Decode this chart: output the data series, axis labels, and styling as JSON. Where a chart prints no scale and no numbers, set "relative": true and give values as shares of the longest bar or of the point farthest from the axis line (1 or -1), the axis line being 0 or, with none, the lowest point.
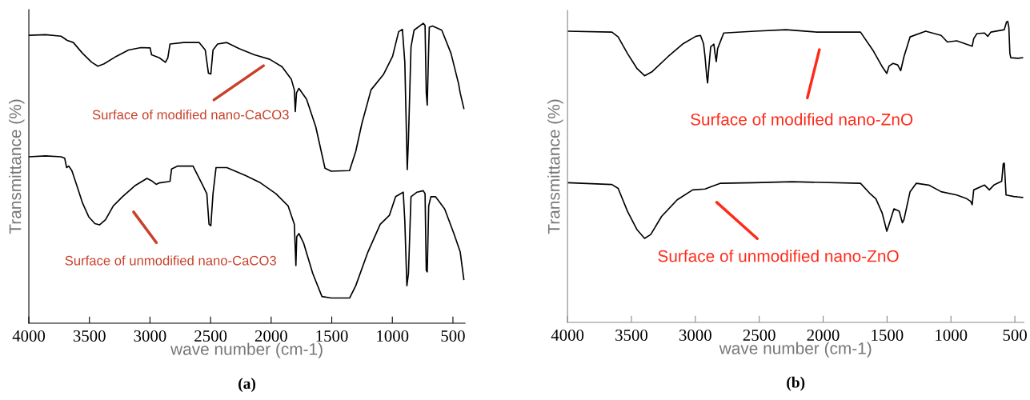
{
  "chart_data": [
    {
      "type": "line",
      "title": "(a)",
      "xlabel": "wave number (cm-1)",
      "ylabel": "Transmittance (%)",
      "relative": true,
      "xlim": [
        4000,
        400
      ],
      "xticks": [
        4000,
        3500,
        3000,
        2500,
        2000,
        1500,
        1000,
        500
      ],
      "series": [
        {
          "color": "#000000",
          "x": [
            4000,
            3861,
            3734,
            3683,
            3633,
            3557,
            3481,
            3430,
            3379,
            3278,
            3177,
            3075,
            2999,
            2987,
            2923,
            2873,
            2853,
            2835,
            2721,
            2594,
            2544,
            2518,
            2498,
            2480,
            2442,
            2366,
            2265,
            2138,
            2012,
            1910,
            1834,
            1809,
            1801,
            1791,
            1771,
            1708,
            1632,
            1556,
            1505,
            1353,
            1302,
            1252,
            1176,
            1074,
            998,
            948,
            917,
            897,
            877,
            867,
            846,
            821,
            745,
            730,
            720,
            712,
            700,
            695,
            668,
            592,
            516,
            453,
            440,
            410
          ],
          "values": [
            0.96,
            0.962,
            0.957,
            0.943,
            0.936,
            0.9,
            0.87,
            0.857,
            0.865,
            0.89,
            0.911,
            0.919,
            0.918,
            0.895,
            0.885,
            0.87,
            0.885,
            0.931,
            0.936,
            0.936,
            0.911,
            0.834,
            0.831,
            0.911,
            0.931,
            0.936,
            0.916,
            0.895,
            0.88,
            0.855,
            0.814,
            0.778,
            0.706,
            0.768,
            0.783,
            0.747,
            0.655,
            0.517,
            0.507,
            0.509,
            0.573,
            0.665,
            0.778,
            0.829,
            0.89,
            0.972,
            0.98,
            0.87,
            0.512,
            0.614,
            0.921,
            0.977,
            1.0,
            0.993,
            0.768,
            0.727,
            0.921,
            0.987,
            0.991,
            0.977,
            0.9,
            0.798,
            0.768,
            0.716
          ]
        },
        {
          "color": "#000000",
          "x": [
            4000,
            3861,
            3734,
            3704,
            3688,
            3671,
            3645,
            3607,
            3557,
            3506,
            3455,
            3417,
            3367,
            3303,
            3227,
            3126,
            3025,
            2987,
            2949,
            2923,
            2835,
            2822,
            2771,
            2645,
            2620,
            2569,
            2531,
            2513,
            2498,
            2480,
            2455,
            2366,
            2214,
            2088,
            1961,
            1860,
            1809,
            1796,
            1789,
            1771,
            1733,
            1657,
            1581,
            1505,
            1353,
            1302,
            1201,
            1100,
            1024,
            973,
            910,
            897,
            880,
            867,
            846,
            796,
            745,
            730,
            720,
            712,
            700,
            682,
            644,
            568,
            492,
            440,
            410
          ],
          "values": [
            0.555,
            0.558,
            0.555,
            0.55,
            0.519,
            0.524,
            0.509,
            0.463,
            0.401,
            0.355,
            0.332,
            0.328,
            0.345,
            0.391,
            0.422,
            0.458,
            0.483,
            0.475,
            0.463,
            0.468,
            0.473,
            0.514,
            0.524,
            0.524,
            0.504,
            0.463,
            0.432,
            0.33,
            0.325,
            0.432,
            0.519,
            0.519,
            0.493,
            0.468,
            0.432,
            0.391,
            0.33,
            0.192,
            0.289,
            0.299,
            0.268,
            0.166,
            0.089,
            0.084,
            0.084,
            0.125,
            0.238,
            0.33,
            0.36,
            0.422,
            0.437,
            0.34,
            0.125,
            0.166,
            0.422,
            0.437,
            0.442,
            0.432,
            0.176,
            0.171,
            0.391,
            0.422,
            0.422,
            0.381,
            0.299,
            0.238,
            0.146
          ]
        }
      ],
      "annotations": [
        "Surface of modified nano-CaCO3",
        "Surface of unmodified nano-CaCO3"
      ]
    },
    {
      "type": "line",
      "title": "(b)",
      "xlabel": "wave number (cm-1)",
      "ylabel": "Transmittance (%)",
      "relative": true,
      "xlim": [
        4000,
        430
      ],
      "xticks": [
        4000,
        3500,
        3000,
        2500,
        2000,
        1500,
        1000,
        500
      ],
      "series": [
        {
          "color": "#000000",
          "x": [
            4000,
            3653,
            3604,
            3531,
            3458,
            3397,
            3337,
            3215,
            3094,
            2996,
            2960,
            2936,
            2924,
            2911,
            2904,
            2894,
            2880,
            2855,
            2846,
            2836,
            2826,
            2778,
            2535,
            2292,
            2049,
            1708,
            1611,
            1538,
            1502,
            1485,
            1453,
            1417,
            1393,
            1368,
            1320,
            1198,
            1077,
            1028,
            955,
            834,
            822,
            797,
            737,
            712,
            688,
            583,
            566,
            556,
            547,
            539,
            532,
            474,
            440
          ],
          "values": [
            0.967,
            0.964,
            0.948,
            0.893,
            0.844,
            0.819,
            0.833,
            0.882,
            0.926,
            0.95,
            0.953,
            0.926,
            0.882,
            0.817,
            0.795,
            0.849,
            0.915,
            0.924,
            0.893,
            0.866,
            0.909,
            0.961,
            0.967,
            0.972,
            0.964,
            0.964,
            0.904,
            0.849,
            0.827,
            0.851,
            0.86,
            0.855,
            0.836,
            0.882,
            0.948,
            0.967,
            0.953,
            0.931,
            0.935,
            0.917,
            0.942,
            0.959,
            0.961,
            0.95,
            0.964,
            0.972,
            0.997,
            1.0,
            0.98,
            0.893,
            0.879,
            0.877,
            0.879
          ]
        },
        {
          "color": "#000000",
          "x": [
            4000,
            3653,
            3604,
            3531,
            3458,
            3397,
            3349,
            3264,
            3142,
            3021,
            2924,
            2875,
            2802,
            2535,
            2243,
            1708,
            1636,
            1587,
            1538,
            1502,
            1485,
            1446,
            1405,
            1380,
            1368,
            1320,
            1271,
            1174,
            1077,
            955,
            882,
            846,
            834,
            822,
            737,
            700,
            664,
            603,
            591,
            583,
            576,
            569,
            508,
            440
          ],
          "values": [
            0.464,
            0.458,
            0.445,
            0.369,
            0.309,
            0.279,
            0.292,
            0.352,
            0.407,
            0.44,
            0.443,
            0.451,
            0.462,
            0.464,
            0.467,
            0.462,
            0.429,
            0.41,
            0.363,
            0.303,
            0.325,
            0.377,
            0.369,
            0.331,
            0.341,
            0.434,
            0.462,
            0.456,
            0.434,
            0.423,
            0.412,
            0.402,
            0.391,
            0.44,
            0.456,
            0.44,
            0.456,
            0.469,
            0.527,
            0.529,
            0.478,
            0.423,
            0.418,
            0.415
          ]
        }
      ],
      "annotations": [
        "Surface of modified nano-ZnO",
        "Surface of unmodified nano-ZnO"
      ]
    }
  ]
}
